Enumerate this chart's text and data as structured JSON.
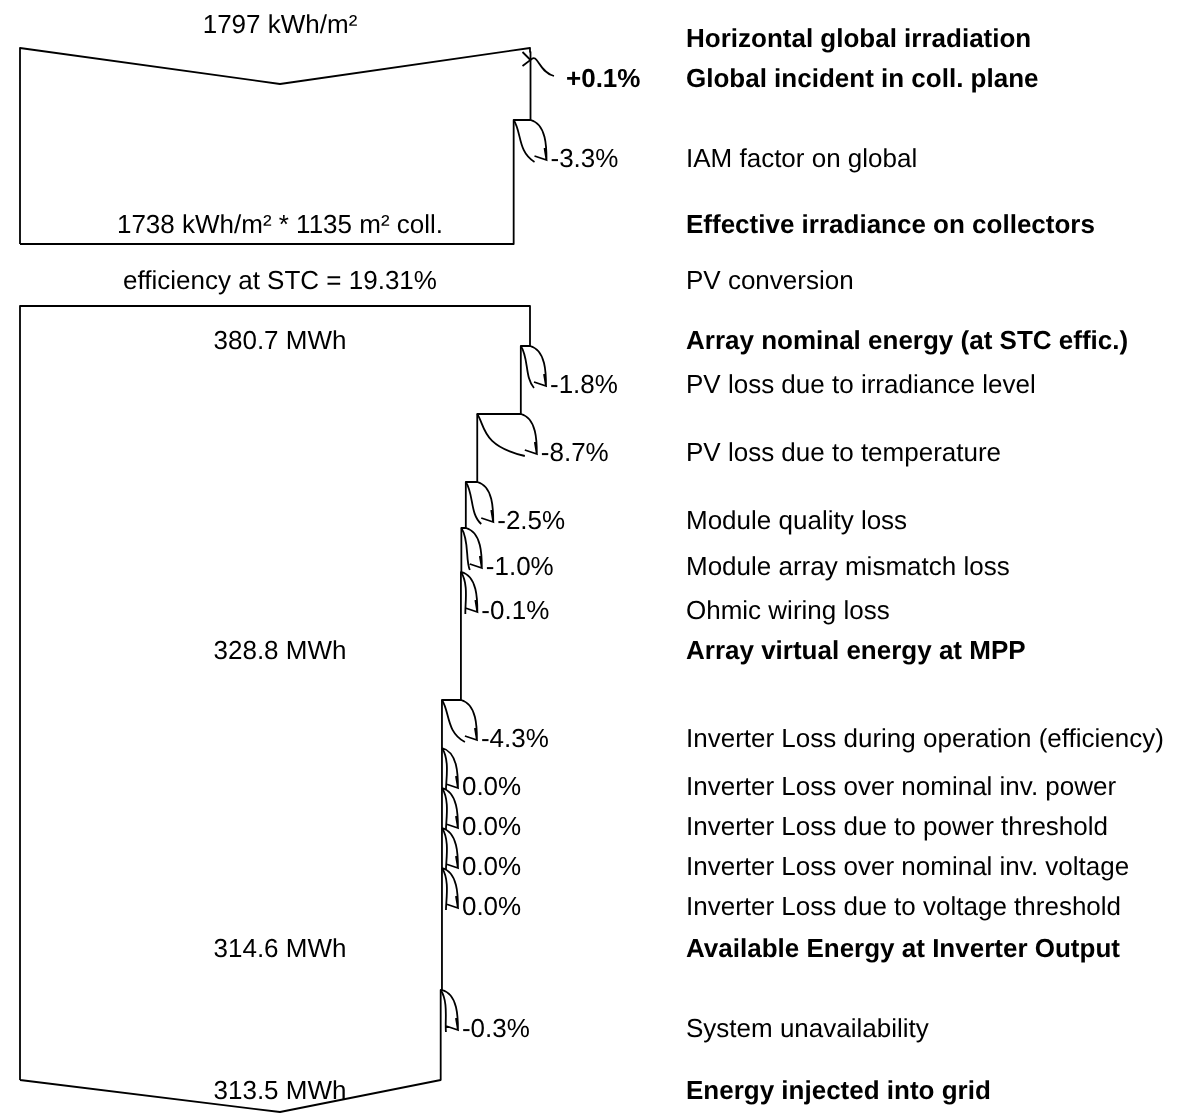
{
  "chart_data": {
    "type": "other",
    "categories": [
      "Horizontal global irradiation",
      "Global incident in coll. plane",
      "IAM factor on global",
      "Effective irradiance on collectors",
      "PV conversion",
      "Array nominal energy (at STC effic.)",
      "PV loss due to irradiance level",
      "PV loss due to temperature",
      "Module quality loss",
      "Module array mismatch loss",
      "Ohmic wiring loss",
      "Array virtual energy at MPP",
      "Inverter Loss during operation (efficiency)",
      "Inverter Loss over nominal inv. power",
      "Inverter Loss due to power threshold",
      "Inverter Loss over nominal inv. voltage",
      "Inverter Loss due to voltage threshold",
      "Available Energy at Inverter Output",
      "System unavailability",
      "Energy injected into grid"
    ],
    "series": [
      {
        "values": [
          1797,
          null,
          null,
          1738,
          null,
          380.7,
          null,
          null,
          null,
          null,
          null,
          328.8,
          null,
          null,
          null,
          null,
          null,
          314.6,
          null,
          313.5
        ],
        "value_labels": [
          "1797 kWh/m²",
          null,
          null,
          "1738 kWh/m² * 1135 m² coll.",
          null,
          "380.7 MWh",
          null,
          null,
          null,
          null,
          null,
          "328.8 MWh",
          null,
          null,
          null,
          null,
          null,
          "314.6 MWh",
          null,
          "313.5 MWh"
        ]
      },
      {
        "values": [
          null,
          0.1,
          -3.3,
          null,
          null,
          null,
          -1.8,
          -8.7,
          -2.5,
          -1.0,
          -0.1,
          null,
          -4.3,
          0,
          0,
          0,
          0,
          null,
          -0.3,
          null
        ],
        "value_labels": [
          null,
          "+0.1%",
          "-3.3%",
          null,
          null,
          null,
          "-1.8%",
          "-8.7%",
          "-2.5%",
          "-1.0%",
          "-0.1%",
          null,
          "-4.3%",
          "0.0%",
          "0.0%",
          "0.0%",
          "0.0%",
          null,
          "-0.3%",
          null
        ]
      },
      {
        "values": [
          null,
          null,
          null,
          null,
          19.31,
          null,
          null,
          null,
          null,
          null,
          null,
          null,
          null,
          null,
          null,
          null,
          null,
          null,
          null,
          null
        ],
        "value_labels": [
          null,
          null,
          null,
          null,
          "efficiency at STC = 19.31%",
          null,
          null,
          null,
          null,
          null,
          null,
          null,
          null,
          null,
          null,
          null,
          null,
          null,
          null,
          null
        ]
      }
    ]
  }
}
